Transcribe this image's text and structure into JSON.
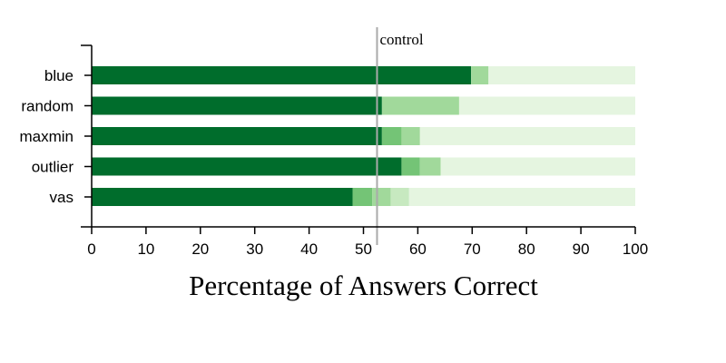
{
  "chart_data": {
    "type": "bar",
    "orientation": "horizontal",
    "stacked": true,
    "categories": [
      "blue",
      "random",
      "maxmin",
      "outlier",
      "vas"
    ],
    "series": [
      {
        "values": [
          69.8,
          53.4,
          53.4,
          57.0,
          48.0
        ],
        "color": "#006d2c"
      },
      {
        "values": [
          3.2,
          14.2,
          3.6,
          3.4,
          3.6
        ],
        "color": "#a1d99b"
      },
      {
        "values": [
          0,
          0,
          3.4,
          3.8,
          3.4
        ],
        "color": "#a1d99b"
      },
      {
        "values": [
          0,
          0,
          0,
          0,
          3.4
        ],
        "color": "#c7e9c0"
      },
      {
        "values": [
          27.0,
          32.4,
          39.6,
          35.8,
          41.6
        ],
        "color": "#e5f5e0"
      }
    ],
    "segment_colors": {
      "blue": [
        "#006d2c",
        "#a1d99b",
        "#a1d99b",
        "#c7e9c0",
        "#e5f5e0"
      ],
      "random": [
        "#006d2c",
        "#a1d99b",
        "#a1d99b",
        "#c7e9c0",
        "#e5f5e0"
      ],
      "maxmin": [
        "#006d2c",
        "#74c476",
        "#a1d99b",
        "#c7e9c0",
        "#e5f5e0"
      ],
      "outlier": [
        "#006d2c",
        "#74c476",
        "#a1d99b",
        "#c7e9c0",
        "#e5f5e0"
      ],
      "vas": [
        "#006d2c",
        "#74c476",
        "#a1d99b",
        "#c7e9c0",
        "#e5f5e0"
      ]
    },
    "xlim": [
      0,
      100
    ],
    "xticks": [
      0,
      10,
      20,
      30,
      40,
      50,
      60,
      70,
      80,
      90,
      100
    ],
    "xlabel": "Percentage of Answers Correct",
    "ylabel": "",
    "title": "",
    "grid": false,
    "reference_line": {
      "value": 52.5,
      "label": "control",
      "color": "#aaaaaa"
    }
  }
}
